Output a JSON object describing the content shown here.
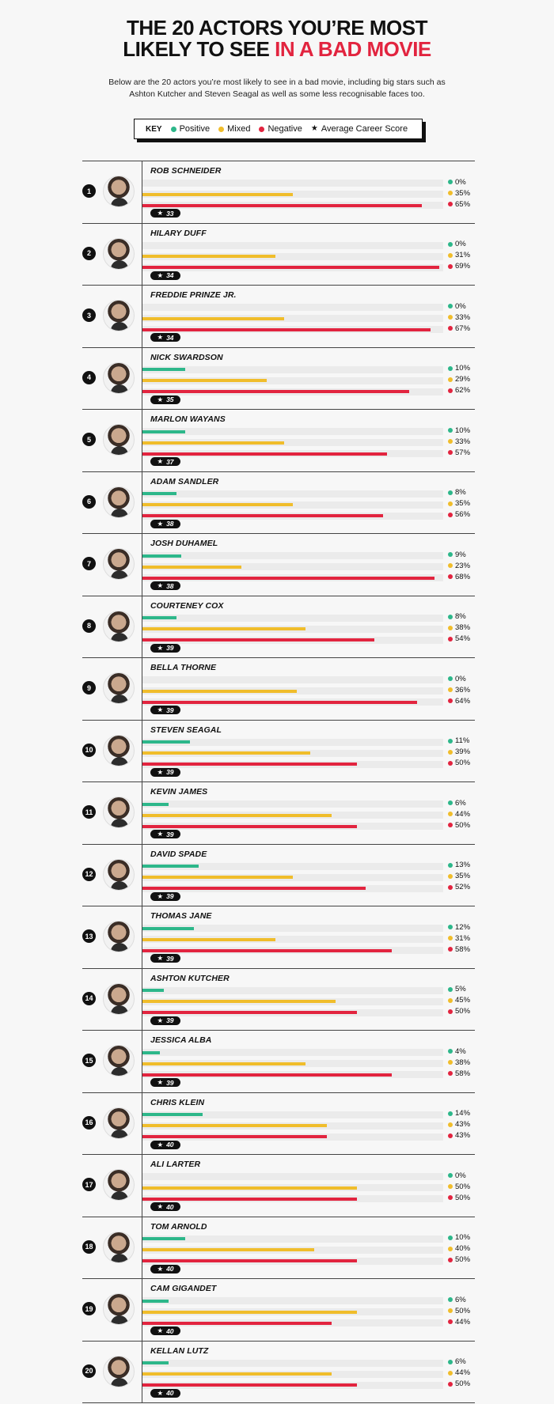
{
  "title": {
    "line1": "THE 20 ACTORS YOU’RE MOST",
    "line2_a": "LIKELY TO SEE ",
    "line2_b": "IN A BAD MOVIE"
  },
  "subtitle": {
    "line1": "Below are the 20 actors you’re most likely to see in a bad movie, including big stars such as",
    "line2": "Ashton Kutcher and Steven Seagal as well as some less recognisable faces too."
  },
  "key": {
    "label": "KEY",
    "positive": "Positive",
    "mixed": "Mixed",
    "negative": "Negative",
    "score": "Average Career Score"
  },
  "colors": {
    "positive": "#2db78a",
    "mixed": "#f0bd2b",
    "negative": "#e2243f",
    "accent": "#e2243f"
  },
  "icons": {
    "score": "★",
    "rank": "number-circle-icon",
    "avatar": "actor-photo-icon"
  },
  "chart_data": {
    "type": "bar",
    "series_names": [
      "Positive",
      "Mixed",
      "Negative"
    ],
    "unit": "%",
    "scale_max": 70,
    "actors": [
      {
        "rank": "1",
        "name": "ROB SCHNEIDER",
        "positive": 0,
        "mixed": 35,
        "negative": 65,
        "score": "33"
      },
      {
        "rank": "2",
        "name": "HILARY DUFF",
        "positive": 0,
        "mixed": 31,
        "negative": 69,
        "score": "34"
      },
      {
        "rank": "3",
        "name": "FREDDIE PRINZE JR.",
        "positive": 0,
        "mixed": 33,
        "negative": 67,
        "score": "34"
      },
      {
        "rank": "4",
        "name": "NICK SWARDSON",
        "positive": 10,
        "mixed": 29,
        "negative": 62,
        "score": "35"
      },
      {
        "rank": "5",
        "name": "MARLON WAYANS",
        "positive": 10,
        "mixed": 33,
        "negative": 57,
        "score": "37"
      },
      {
        "rank": "6",
        "name": "ADAM SANDLER",
        "positive": 8,
        "mixed": 35,
        "negative": 56,
        "score": "38"
      },
      {
        "rank": "7",
        "name": "JOSH DUHAMEL",
        "positive": 9,
        "mixed": 23,
        "negative": 68,
        "score": "38"
      },
      {
        "rank": "8",
        "name": "COURTENEY COX",
        "positive": 8,
        "mixed": 38,
        "negative": 54,
        "score": "39"
      },
      {
        "rank": "9",
        "name": "BELLA THORNE",
        "positive": 0,
        "mixed": 36,
        "negative": 64,
        "score": "39"
      },
      {
        "rank": "10",
        "name": "STEVEN SEAGAL",
        "positive": 11,
        "mixed": 39,
        "negative": 50,
        "score": "39"
      },
      {
        "rank": "11",
        "name": "KEVIN JAMES",
        "positive": 6,
        "mixed": 44,
        "negative": 50,
        "score": "39"
      },
      {
        "rank": "12",
        "name": "DAVID SPADE",
        "positive": 13,
        "mixed": 35,
        "negative": 52,
        "score": "39"
      },
      {
        "rank": "13",
        "name": "THOMAS JANE",
        "positive": 12,
        "mixed": 31,
        "negative": 58,
        "score": "39"
      },
      {
        "rank": "14",
        "name": "ASHTON KUTCHER",
        "positive": 5,
        "mixed": 45,
        "negative": 50,
        "score": "39"
      },
      {
        "rank": "15",
        "name": "JESSICA ALBA",
        "positive": 4,
        "mixed": 38,
        "negative": 58,
        "score": "39"
      },
      {
        "rank": "16",
        "name": "CHRIS KLEIN",
        "positive": 14,
        "mixed": 43,
        "negative": 43,
        "score": "40"
      },
      {
        "rank": "17",
        "name": "ALI LARTER",
        "positive": 0,
        "mixed": 50,
        "negative": 50,
        "score": "40"
      },
      {
        "rank": "18",
        "name": "TOM ARNOLD",
        "positive": 10,
        "mixed": 40,
        "negative": 50,
        "score": "40"
      },
      {
        "rank": "19",
        "name": "CAM GIGANDET",
        "positive": 6,
        "mixed": 50,
        "negative": 44,
        "score": "40"
      },
      {
        "rank": "20",
        "name": "KELLAN LUTZ",
        "positive": 6,
        "mixed": 44,
        "negative": 50,
        "score": "40"
      }
    ]
  }
}
